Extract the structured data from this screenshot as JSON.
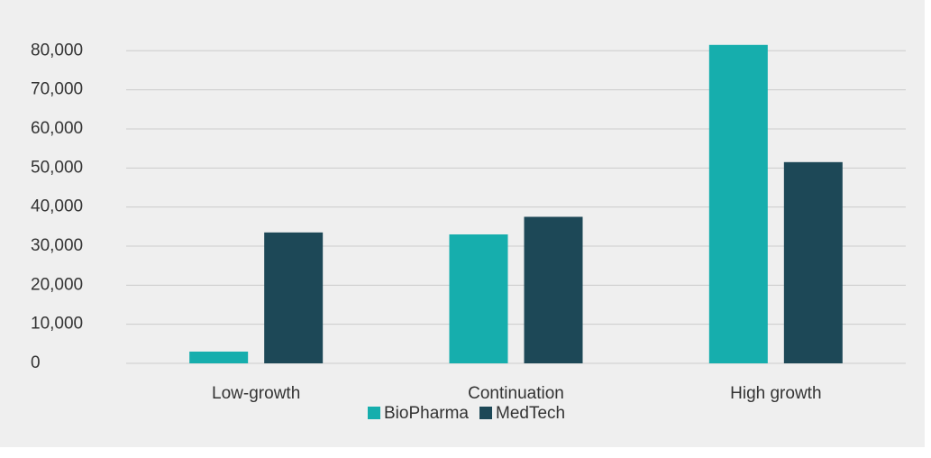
{
  "chart_data": {
    "type": "bar",
    "categories": [
      "Low-growth",
      "Continuation",
      "High growth"
    ],
    "series": [
      {
        "name": "BioPharma",
        "color": "#16aead",
        "values": [
          3000,
          33000,
          81500
        ]
      },
      {
        "name": "MedTech",
        "color": "#1d4857",
        "values": [
          33500,
          37500,
          51500
        ]
      }
    ],
    "ylim": [
      0,
      80000
    ],
    "yticks": [
      0,
      {
        "value": 10000,
        "label": "10,000"
      },
      {
        "value": 20000,
        "label": "20,000"
      },
      {
        "value": 30000,
        "label": "30,000"
      },
      {
        "value": 40000,
        "label": "40,000"
      },
      {
        "value": 50000,
        "label": "50,000"
      },
      {
        "value": 60000,
        "label": "60,000"
      },
      {
        "value": 70000,
        "label": "70,000"
      },
      {
        "value": 80000,
        "label": "80,000"
      }
    ],
    "grid": true,
    "legend": "bottom"
  }
}
